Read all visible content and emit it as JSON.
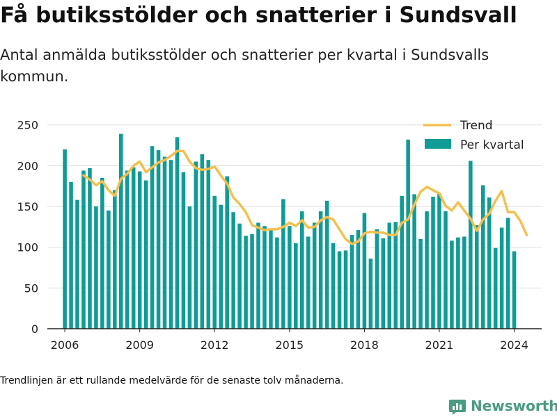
{
  "title": "Få butiksstölder och snatterier i Sundsvall",
  "subtitle": "Antal anmälda butiksstölder och snatterier per kvartal i Sundsvalls kommun.",
  "footnote": "Trendlinjen är ett rullande medelvärde för de senaste tolv månaderna.",
  "brand": {
    "name": "Newsworthy",
    "icon": "bar-chart-logo-icon",
    "color": "#4c9a84"
  },
  "chart_data": {
    "type": "bar",
    "x_start": 2006,
    "x_step": 0.25,
    "xlim": [
      2005.3,
      2025.1
    ],
    "ylim": [
      0,
      260
    ],
    "xticks": [
      2006,
      2009,
      2012,
      2015,
      2018,
      2021,
      2024
    ],
    "yticks": [
      0,
      50,
      100,
      150,
      200,
      250
    ],
    "grid": "horizontal",
    "legend_position": "top-right",
    "colors": {
      "bars": "#109b96",
      "trend": "#f2c04f",
      "grid": "#dddddd",
      "axis": "#222222"
    },
    "series": [
      {
        "name": "Per kvartal",
        "type": "bar",
        "values": [
          220,
          180,
          158,
          194,
          197,
          150,
          185,
          145,
          170,
          239,
          194,
          198,
          193,
          182,
          224,
          219,
          211,
          207,
          235,
          192,
          150,
          205,
          214,
          207,
          163,
          152,
          187,
          143,
          129,
          114,
          116,
          130,
          126,
          123,
          112,
          159,
          126,
          105,
          144,
          113,
          130,
          144,
          157,
          105,
          95,
          96,
          115,
          121,
          142,
          86,
          122,
          111,
          130,
          131,
          163,
          232,
          165,
          110,
          144,
          162,
          166,
          144,
          108,
          112,
          113,
          206,
          127,
          176,
          161,
          99,
          124,
          136,
          95
        ]
      },
      {
        "name": "Trend",
        "type": "line",
        "start": 2006.75,
        "values": [
          188,
          183,
          176,
          181,
          170,
          163,
          184,
          190,
          200,
          205,
          192,
          198,
          204,
          207,
          212,
          218,
          218,
          205,
          197,
          195,
          196,
          199,
          188,
          178,
          161,
          153,
          143,
          127,
          124,
          121,
          122,
          122,
          125,
          130,
          126,
          133,
          124,
          125,
          133,
          137,
          134,
          122,
          110,
          104,
          107,
          117,
          119,
          118,
          118,
          115,
          115,
          130,
          134,
          152,
          168,
          174,
          170,
          166,
          151,
          145,
          155,
          145,
          135,
          120,
          134,
          141,
          157,
          169,
          143,
          143,
          132,
          115
        ]
      }
    ]
  }
}
